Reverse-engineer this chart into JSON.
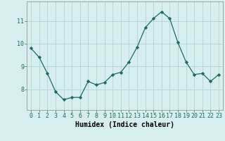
{
  "x": [
    0,
    1,
    2,
    3,
    4,
    5,
    6,
    7,
    8,
    9,
    10,
    11,
    12,
    13,
    14,
    15,
    16,
    17,
    18,
    19,
    20,
    21,
    22,
    23
  ],
  "y": [
    9.8,
    9.4,
    8.7,
    7.9,
    7.55,
    7.65,
    7.65,
    8.35,
    8.2,
    8.3,
    8.65,
    8.75,
    9.2,
    9.85,
    10.7,
    11.1,
    11.4,
    11.1,
    10.05,
    9.2,
    8.65,
    8.7,
    8.35,
    8.65
  ],
  "line_color": "#1e6b5e",
  "marker": "D",
  "marker_size": 2.2,
  "bg_color": "#d6eeee",
  "grid_color": "#b8d8d8",
  "xlabel": "Humidex (Indice chaleur)",
  "xlabel_fontsize": 7,
  "tick_fontsize": 6,
  "yticks": [
    8,
    9,
    10,
    11
  ],
  "ylim": [
    7.1,
    11.85
  ],
  "xlim": [
    -0.5,
    23.5
  ]
}
